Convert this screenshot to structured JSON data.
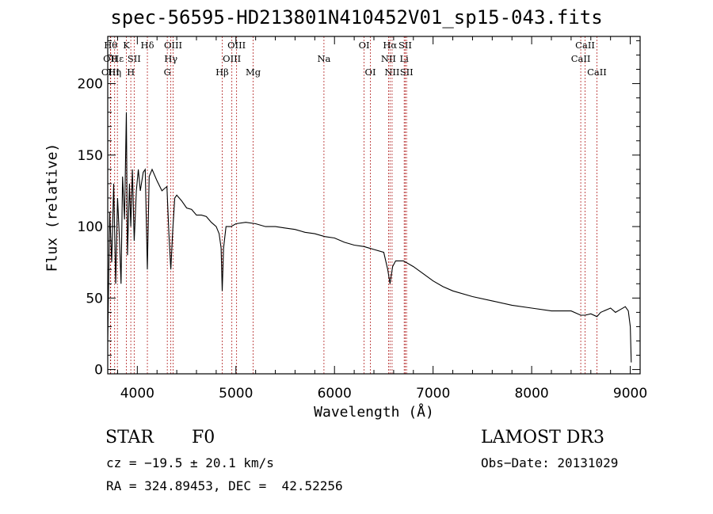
{
  "chart_data": {
    "type": "line",
    "title": "spec-56595-HD213801N410452V01_sp15-043.fits",
    "xlabel": "Wavelength (Å)",
    "ylabel": "Flux (relative)",
    "xlim": [
      3700,
      9100
    ],
    "ylim": [
      -3,
      233
    ],
    "xticks": [
      4000,
      5000,
      6000,
      7000,
      8000,
      9000
    ],
    "yticks": [
      0,
      50,
      100,
      150,
      200
    ],
    "series": [
      {
        "name": "flux",
        "x": [
          3700,
          3720,
          3740,
          3760,
          3780,
          3800,
          3820,
          3835,
          3850,
          3870,
          3889,
          3900,
          3920,
          3934,
          3950,
          3968,
          3990,
          4010,
          4030,
          4060,
          4080,
          4102,
          4120,
          4150,
          4200,
          4250,
          4300,
          4320,
          4340,
          4360,
          4380,
          4400,
          4450,
          4500,
          4550,
          4600,
          4650,
          4700,
          4750,
          4800,
          4830,
          4850,
          4861,
          4875,
          4900,
          4950,
          5000,
          5100,
          5200,
          5300,
          5400,
          5500,
          5600,
          5700,
          5800,
          5900,
          6000,
          6100,
          6200,
          6300,
          6350,
          6400,
          6500,
          6540,
          6563,
          6590,
          6620,
          6700,
          6800,
          6900,
          7000,
          7100,
          7200,
          7400,
          7600,
          7800,
          8000,
          8200,
          8400,
          8498,
          8542,
          8600,
          8662,
          8700,
          8800,
          8850,
          8900,
          8950,
          8980,
          9000,
          9010
        ],
        "values": [
          20,
          110,
          75,
          130,
          60,
          120,
          90,
          60,
          135,
          105,
          180,
          80,
          130,
          100,
          140,
          90,
          125,
          140,
          125,
          138,
          140,
          70,
          135,
          140,
          132,
          125,
          128,
          95,
          70,
          98,
          120,
          122,
          118,
          113,
          112,
          108,
          108,
          107,
          103,
          100,
          95,
          85,
          55,
          85,
          100,
          100,
          102,
          103,
          102,
          100,
          100,
          99,
          98,
          96,
          95,
          93,
          92,
          89,
          87,
          86,
          85,
          84,
          82,
          70,
          60,
          72,
          76,
          76,
          72,
          67,
          62,
          58,
          55,
          51,
          48,
          45,
          43,
          41,
          41,
          38,
          38,
          39,
          37,
          40,
          43,
          40,
          42,
          44,
          41,
          30,
          5
        ]
      }
    ],
    "lines": [
      {
        "x": 3730,
        "label": "Hθ",
        "row": 0
      },
      {
        "x": 3727,
        "label": "OII",
        "row": 1
      },
      {
        "x": 3727,
        "label": "OIII",
        "row": 2
      },
      {
        "x": 3770,
        "label": "Hη",
        "row": 2
      },
      {
        "x": 3798,
        "label": "Hε",
        "row": 1
      },
      {
        "x": 3889,
        "label": "K",
        "row": 0
      },
      {
        "x": 3934,
        "label": "H",
        "row": 2
      },
      {
        "x": 3968,
        "label": "SII",
        "row": 1
      },
      {
        "x": 4102,
        "label": "Hδ",
        "row": 0
      },
      {
        "x": 4304,
        "label": "G",
        "row": 2
      },
      {
        "x": 4340,
        "label": "Hγ",
        "row": 1
      },
      {
        "x": 4363,
        "label": "OIII",
        "row": 0
      },
      {
        "x": 4861,
        "label": "Hβ",
        "row": 2
      },
      {
        "x": 4959,
        "label": "OIII",
        "row": 1
      },
      {
        "x": 5007,
        "label": "OIII",
        "row": 0
      },
      {
        "x": 5175,
        "label": "Mg",
        "row": 2
      },
      {
        "x": 5893,
        "label": "Na",
        "row": 1
      },
      {
        "x": 6300,
        "label": "OI",
        "row": 0
      },
      {
        "x": 6364,
        "label": "OI",
        "row": 2
      },
      {
        "x": 6548,
        "label": "NII",
        "row": 1
      },
      {
        "x": 6563,
        "label": "Hα",
        "row": 0
      },
      {
        "x": 6584,
        "label": "NII",
        "row": 2
      },
      {
        "x": 6707,
        "label": "Li",
        "row": 1
      },
      {
        "x": 6717,
        "label": "SII",
        "row": 0
      },
      {
        "x": 6731,
        "label": "SII",
        "row": 2
      },
      {
        "x": 8498,
        "label": "CaII",
        "row": 1
      },
      {
        "x": 8542,
        "label": "CaII",
        "row": 0
      },
      {
        "x": 8662,
        "label": "CaII",
        "row": 2
      }
    ]
  },
  "info": {
    "class": "STAR",
    "subclass": "F0",
    "survey": "LAMOST DR3",
    "cz": "cz = −19.5 ± 20.1 km/s",
    "obs_date": "Obs−Date: 20131029",
    "coords": "RA = 324.89453, DEC =  42.52256"
  }
}
